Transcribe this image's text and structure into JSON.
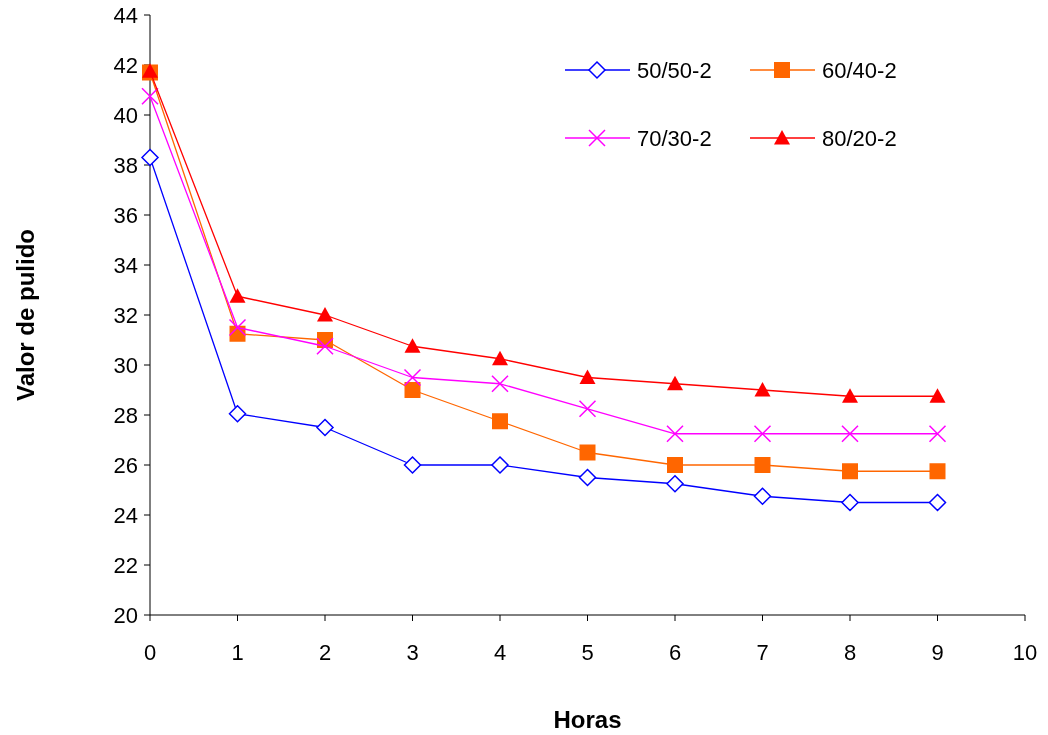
{
  "chart_data": {
    "type": "line",
    "xlabel": "Horas",
    "ylabel": "Valor de pulido",
    "x": [
      0,
      1,
      2,
      3,
      4,
      5,
      6,
      7,
      8,
      9
    ],
    "xlim": [
      0,
      10
    ],
    "xticks": [
      0,
      1,
      2,
      3,
      4,
      5,
      6,
      7,
      8,
      9,
      10
    ],
    "ylim": [
      20,
      44
    ],
    "yticks": [
      20,
      22,
      24,
      26,
      28,
      30,
      32,
      34,
      36,
      38,
      40,
      42,
      44
    ],
    "grid": false,
    "legend": "top right",
    "series": [
      {
        "name": "50/50-2",
        "color": "#0000ff",
        "marker": "diamond",
        "values": [
          38.3,
          28.05,
          27.5,
          26,
          26,
          25.5,
          25.25,
          24.75,
          24.5,
          24.5
        ]
      },
      {
        "name": "60/40-2",
        "color": "#ff6600",
        "marker": "square",
        "values": [
          41.7,
          31.25,
          31,
          29,
          27.75,
          26.5,
          26,
          26,
          25.75,
          25.75
        ]
      },
      {
        "name": "70/30-2",
        "color": "#ff00ff",
        "marker": "cross",
        "values": [
          40.75,
          31.5,
          30.75,
          29.5,
          29.25,
          28.25,
          27.25,
          27.25,
          27.25,
          27.25
        ]
      },
      {
        "name": "80/20-2",
        "color": "#ff0000",
        "marker": "triangle",
        "values": [
          41.75,
          32.75,
          32,
          30.75,
          30.25,
          29.5,
          29.25,
          29,
          28.75,
          28.75
        ]
      }
    ]
  }
}
